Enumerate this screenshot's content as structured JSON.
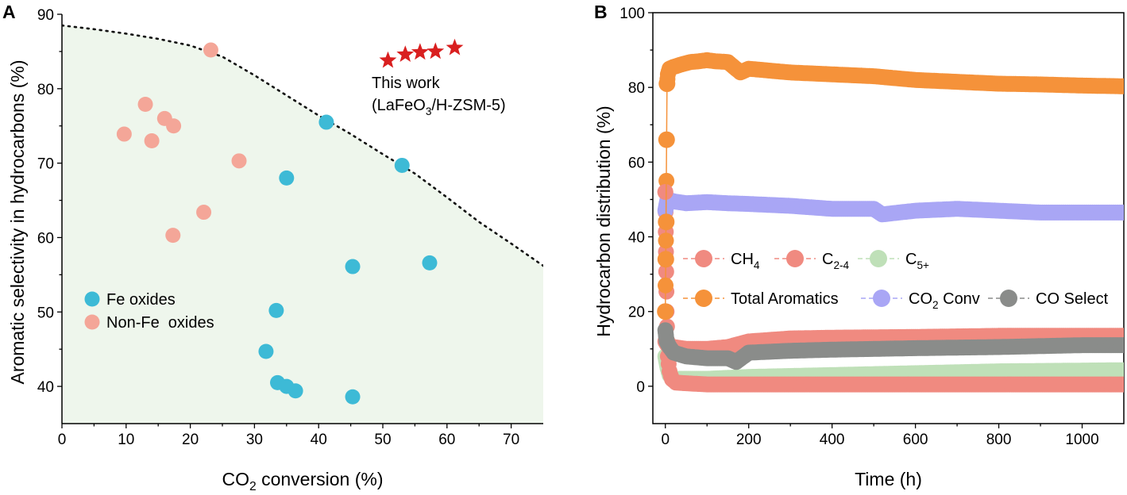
{
  "chart_data": [
    {
      "panel": "A",
      "type": "scatter",
      "xlabel": "CO2 conversion (%)",
      "xlabel_parts": [
        "CO",
        "2",
        " conversion (%)"
      ],
      "ylabel": "Aromatic selectivity in hydrocarbons (%)",
      "xlim": [
        0,
        75
      ],
      "ylim": [
        35,
        90
      ],
      "xticks": [
        0,
        10,
        20,
        30,
        40,
        50,
        60,
        70
      ],
      "yticks": [
        40,
        50,
        60,
        70,
        80,
        90
      ],
      "grid": false,
      "legend_position": "bottom-left",
      "series": [
        {
          "name": "Fe oxides",
          "color": "#3dbad6",
          "x": [
            41.2,
            53.0,
            35.0,
            45.3,
            57.3,
            33.4,
            31.8,
            33.6,
            35.0,
            36.4,
            45.3
          ],
          "y": [
            75.5,
            69.7,
            68.0,
            56.1,
            56.6,
            50.2,
            44.7,
            40.5,
            40.0,
            39.4,
            38.6
          ]
        },
        {
          "name": "Non-Fe  oxides",
          "color": "#f4a698",
          "x": [
            23.2,
            13.0,
            16.0,
            17.4,
            9.7,
            14.0,
            27.6,
            22.1,
            17.3
          ],
          "y": [
            85.2,
            77.9,
            76.0,
            75.0,
            73.9,
            73.0,
            70.3,
            63.4,
            60.3
          ]
        },
        {
          "name": "This work",
          "color": "#d91f1f",
          "marker": "star",
          "x": [
            50.8,
            53.5,
            55.8,
            58.2,
            61.2
          ],
          "y": [
            83.8,
            84.6,
            84.9,
            85.0,
            85.5
          ]
        }
      ],
      "frontier_curve": {
        "style": "dotted",
        "x": [
          0,
          5,
          10,
          15,
          20,
          25,
          30,
          35,
          40,
          45,
          50,
          55,
          60,
          65,
          70,
          75
        ],
        "y": [
          88.5,
          88.0,
          87.4,
          86.7,
          85.8,
          84.3,
          81.8,
          79.1,
          76.4,
          73.9,
          71.2,
          68.6,
          65.4,
          62.1,
          59.2,
          56.2
        ]
      },
      "annotation": {
        "line1": "This work",
        "line2_parts": [
          "(LaFeO",
          "3",
          "/H-ZSM-5)"
        ]
      }
    },
    {
      "panel": "B",
      "type": "scatter",
      "xlabel": "Time (h)",
      "ylabel": "Hydrocarbon distribution (%)",
      "xlim": [
        -30,
        1100
      ],
      "ylim": [
        -10,
        100
      ],
      "xticks": [
        0,
        200,
        400,
        600,
        800,
        1000
      ],
      "yticks": [
        0,
        20,
        40,
        60,
        80,
        100
      ],
      "grid": false,
      "legend_position": "center",
      "series": [
        {
          "name": "CH4",
          "name_parts": [
            "CH",
            "4",
            ""
          ],
          "color": "#f08a80",
          "x": [
            0,
            3,
            6,
            10,
            15,
            25,
            50,
            100,
            200,
            400,
            600,
            800,
            1000,
            1100
          ],
          "y": [
            52,
            20,
            8,
            4,
            2,
            1,
            0.8,
            0.5,
            0.5,
            0.5,
            0.5,
            0.5,
            0.5,
            0.5
          ]
        },
        {
          "name": "C2-4",
          "name_parts": [
            "C",
            "2-4",
            ""
          ],
          "color": "#f08a80",
          "x": [
            0,
            5,
            20,
            50,
            100,
            150,
            200,
            300,
            400,
            600,
            800,
            1000,
            1100
          ],
          "y": [
            12,
            11,
            10.5,
            10,
            10,
            10.5,
            12,
            12.8,
            13,
            13.2,
            13.5,
            13.5,
            13.5
          ]
        },
        {
          "name": "C5+",
          "name_parts": [
            "C",
            "5+",
            ""
          ],
          "color": "#bfe0b8",
          "x": [
            0,
            5,
            10,
            20,
            50,
            100,
            200,
            400,
            600,
            800,
            1000,
            1100
          ],
          "y": [
            8,
            5,
            3,
            2,
            2,
            2,
            2.5,
            3,
            3.5,
            4,
            4.2,
            4.3
          ]
        },
        {
          "name": "Total Aromatics",
          "color": "#f5923a",
          "x": [
            0,
            1,
            2,
            3,
            4,
            6,
            10,
            20,
            40,
            60,
            80,
            100,
            120,
            150,
            180,
            200,
            300,
            400,
            500,
            600,
            700,
            800,
            900,
            1000,
            1100
          ],
          "y": [
            20,
            34,
            44,
            66,
            81,
            83.5,
            85,
            85.5,
            86.2,
            86.8,
            87,
            87.3,
            87,
            86.8,
            84,
            85,
            84,
            83.5,
            83,
            82,
            81.5,
            81,
            80.8,
            80.5,
            80.3
          ]
        },
        {
          "name": "CO2 Conv",
          "name_parts": [
            "CO",
            "2",
            " Conv"
          ],
          "color": "#a9a6f5",
          "x": [
            0,
            5,
            20,
            50,
            100,
            150,
            200,
            300,
            400,
            500,
            520,
            600,
            700,
            800,
            900,
            1000,
            1100
          ],
          "y": [
            47,
            50,
            49.5,
            49,
            49.3,
            49,
            48.8,
            48.3,
            47.5,
            47.5,
            46,
            47,
            47.5,
            47,
            46.5,
            46.5,
            46.5
          ]
        },
        {
          "name": "CO Select",
          "color": "#8a8c8a",
          "x": [
            0,
            3,
            10,
            20,
            50,
            100,
            150,
            170,
            200,
            300,
            400,
            600,
            800,
            1000,
            1100
          ],
          "y": [
            15,
            12,
            10.5,
            9,
            8,
            7.5,
            7.5,
            6.5,
            9,
            9.5,
            9.8,
            10.2,
            10.5,
            11,
            11
          ]
        }
      ]
    }
  ]
}
